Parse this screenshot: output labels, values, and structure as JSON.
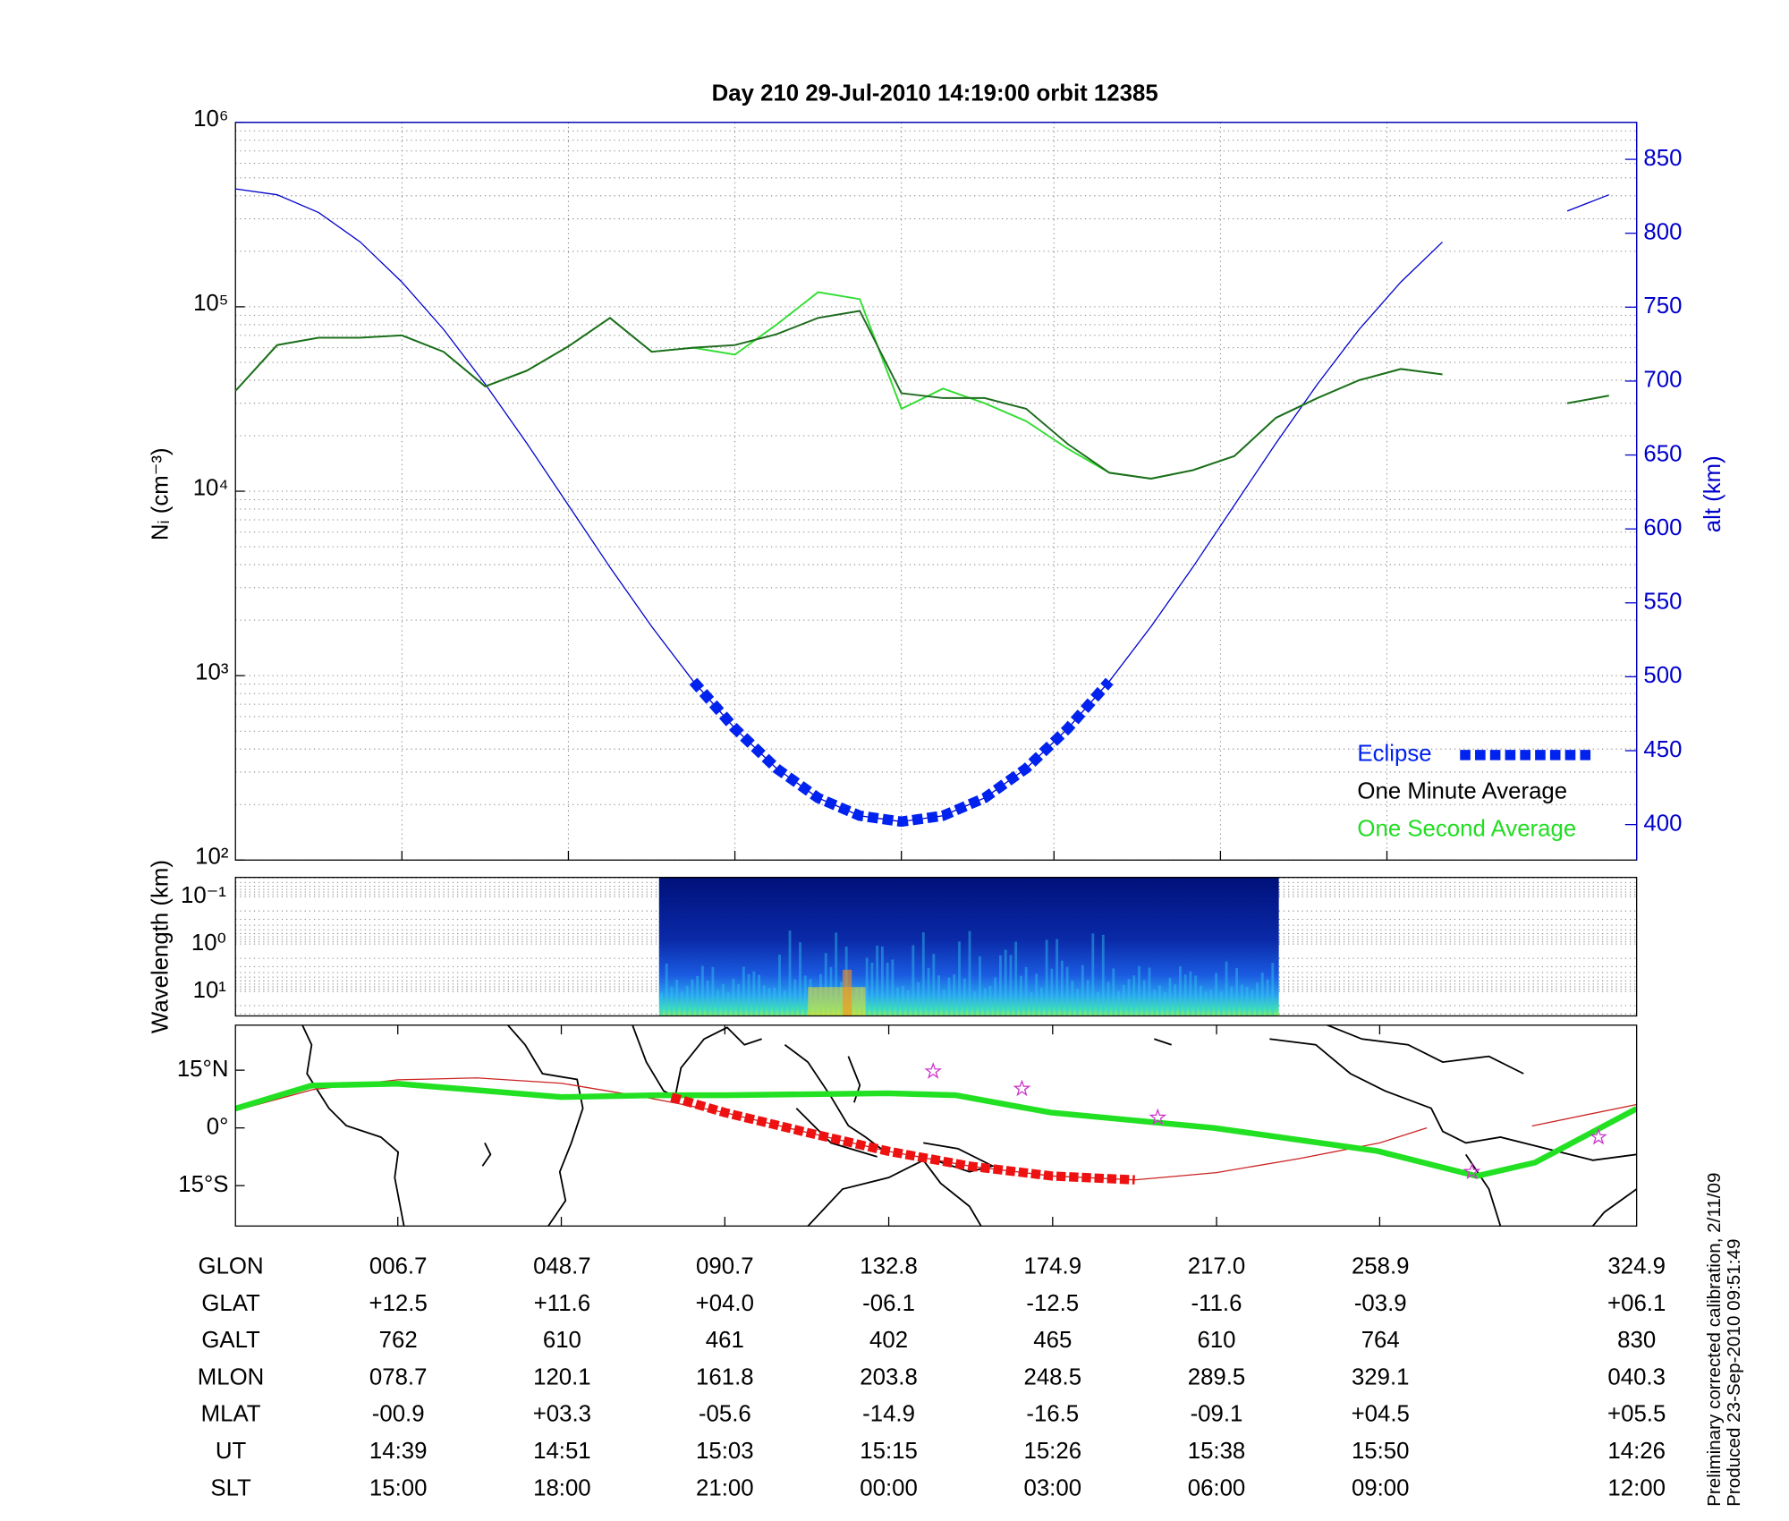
{
  "chart_data": [
    {
      "type": "line",
      "title": "Day 210  29-Jul-2010 14:19:00   orbit 12385",
      "ylabel": "Nᵢ (cm⁻³)",
      "y2label": "alt (km)",
      "log_y": true,
      "grid": true,
      "legend": "lower right",
      "xlim": [
        "14:27",
        "16:08"
      ],
      "xticks": [
        "14:39",
        "14:51",
        "15:03",
        "15:15",
        "15:26",
        "15:38",
        "15:50"
      ],
      "ylim": [
        100,
        1000000
      ],
      "yticks": [
        {
          "value": 100,
          "label": "10²"
        },
        {
          "value": 1000,
          "label": "10³"
        },
        {
          "value": 10000,
          "label": "10⁴"
        },
        {
          "value": 100000,
          "label": "10⁵"
        },
        {
          "value": 1000000,
          "label": "10⁶"
        }
      ],
      "y2lim": [
        376,
        875
      ],
      "y2ticks": [
        400,
        450,
        500,
        550,
        600,
        650,
        700,
        750,
        800,
        850
      ],
      "y2color": "#0000cc",
      "series": [
        {
          "name": "Eclipse",
          "axis": "y2",
          "color": "#0022ee",
          "style": "squares",
          "x": [
            "15:00",
            "15:03",
            "15:06",
            "15:09",
            "15:12",
            "15:15",
            "15:18",
            "15:21",
            "15:24",
            "15:27",
            "15:30"
          ],
          "values": [
            497,
            465,
            438,
            418,
            406,
            402,
            406,
            418,
            438,
            465,
            497
          ]
        },
        {
          "name": "One Minute Average",
          "color": "#1e6b1e",
          "text_color": "#000000",
          "style": "line",
          "x": [
            "14:27",
            "14:30",
            "14:33",
            "14:36",
            "14:39",
            "14:42",
            "14:45",
            "14:48",
            "14:51",
            "14:54",
            "14:57",
            "15:00",
            "15:03",
            "15:06",
            "15:09",
            "15:12",
            "15:15",
            "15:18",
            "15:21",
            "15:24",
            "15:27",
            "15:30",
            "15:33",
            "15:36",
            "15:39",
            "15:42",
            "15:45",
            "15:48",
            "15:51",
            "15:54",
            "15:57",
            "16:00",
            "16:03",
            "16:06"
          ],
          "values": [
            35000,
            62000,
            68000,
            68000,
            70000,
            57000,
            37000,
            45000,
            61000,
            87000,
            57000,
            60000,
            62000,
            71000,
            87000,
            95000,
            34000,
            32000,
            32000,
            28000,
            18000,
            12600,
            11700,
            13000,
            15500,
            25000,
            32000,
            40000,
            46000,
            43000,
            null,
            null,
            30000,
            33000
          ]
        },
        {
          "name": "One Second Average",
          "color": "#33dd33",
          "text_color": "#22dd22",
          "style": "line",
          "x": [
            "14:27",
            "14:30",
            "14:33",
            "14:36",
            "14:39",
            "14:42",
            "14:45",
            "14:48",
            "14:51",
            "14:54",
            "14:57",
            "15:00",
            "15:03",
            "15:06",
            "15:09",
            "15:12",
            "15:15",
            "15:18",
            "15:21",
            "15:24",
            "15:27",
            "15:30",
            "15:33",
            "15:36",
            "15:39",
            "15:42",
            "15:45",
            "15:48",
            "15:51",
            "15:54",
            "15:57",
            "16:00",
            "16:03",
            "16:06"
          ],
          "values": [
            35000,
            62000,
            68000,
            68000,
            70000,
            57000,
            37000,
            45000,
            61000,
            87000,
            57000,
            60000,
            55000,
            80000,
            120000,
            110000,
            28000,
            36000,
            30000,
            24000,
            17000,
            12600,
            11700,
            13000,
            15500,
            25000,
            32000,
            40000,
            46000,
            43000,
            null,
            null,
            30000,
            33000
          ]
        },
        {
          "axis": "y2",
          "color": "#0000cc",
          "style": "thin",
          "x": [
            "14:27",
            "14:30",
            "14:33",
            "14:36",
            "14:39",
            "14:42",
            "14:45",
            "14:48",
            "14:51",
            "14:54",
            "14:57",
            "15:00",
            "15:03",
            "15:06",
            "15:09",
            "15:12",
            "15:15",
            "15:18",
            "15:21",
            "15:24",
            "15:27",
            "15:30",
            "15:33",
            "15:36",
            "15:39",
            "15:42",
            "15:45",
            "15:48",
            "15:51",
            "15:54",
            "15:57",
            "16:00",
            "16:03",
            "16:06"
          ],
          "values": [
            830,
            826,
            814,
            794,
            767,
            735,
            698,
            658,
            616,
            574,
            534,
            497,
            465,
            438,
            418,
            406,
            402,
            406,
            418,
            438,
            465,
            497,
            534,
            574,
            616,
            658,
            698,
            735,
            767,
            794,
            null,
            null,
            815,
            826
          ]
        }
      ]
    },
    {
      "type": "spectrogram",
      "ylabel": "Wavelength (km)",
      "log_y": true,
      "grid": true,
      "ylim": [
        0.039,
        33
      ],
      "yticks": [
        {
          "value": 0.1,
          "label": "10⁻¹"
        },
        {
          "value": 1,
          "label": "10⁰"
        },
        {
          "value": 10,
          "label": "10¹"
        }
      ]
    },
    {
      "type": "map",
      "xlim": [
        -35,
        324.9
      ],
      "xticks": [
        6.7,
        48.7,
        90.7,
        132.8,
        174.9,
        217.0,
        258.9
      ],
      "ylim": [
        -25.5,
        26.7
      ],
      "yticks": [
        {
          "value": 15,
          "label": "15°N"
        },
        {
          "value": 0,
          "label": "0°"
        },
        {
          "value": -15,
          "label": "15°S"
        }
      ],
      "series": [
        {
          "color": "#cc2222",
          "style": "thin",
          "x": [
            -35,
            -15,
            6.7,
            27,
            48.7,
            70,
            90.7,
            111,
            132.8,
            154,
            174.9,
            196,
            217.0,
            238,
            258.9,
            271,
            null,
            298,
            324.9
          ],
          "values": [
            4.5,
            10,
            12.5,
            13,
            11.6,
            8,
            4.0,
            -1,
            -6.1,
            -10,
            -12.5,
            -13.5,
            -11.6,
            -8,
            -3.9,
            0,
            null,
            0.5,
            6.1
          ]
        },
        {
          "color": "#22e022",
          "style": "bold",
          "x": [
            -35,
            -15.5,
            6.7,
            48.7,
            73,
            90.4,
            132.4,
            150,
            174.4,
            216.3,
            258.3,
            283.8,
            298.8,
            324.9
          ],
          "values": [
            5,
            11,
            11.5,
            8,
            8.5,
            8.5,
            9,
            8.5,
            4,
            0,
            -6,
            -12.5,
            -9,
            5
          ]
        },
        {
          "color": "#ee1111",
          "style": "squares",
          "x": [
            77,
            90.7,
            111,
            132.8,
            154,
            174.9,
            196
          ],
          "values": [
            8,
            4.0,
            -1,
            -6.1,
            -10,
            -12.5,
            -13.5
          ]
        },
        {
          "color": "#cc33cc",
          "style": "stars",
          "x": [
            144.2,
            167,
            201.9,
            282.6,
            315.1
          ],
          "values": [
            14.7,
            10.2,
            2.7,
            -11.4,
            -2.4
          ]
        }
      ]
    }
  ],
  "table": {
    "rows": [
      {
        "label": "GLON",
        "values": [
          "006.7",
          "048.7",
          "090.7",
          "132.8",
          "174.9",
          "217.0",
          "258.9",
          "324.9"
        ]
      },
      {
        "label": "GLAT",
        "values": [
          "+12.5",
          "+11.6",
          "+04.0",
          "-06.1",
          "-12.5",
          "-11.6",
          "-03.9",
          "+06.1"
        ]
      },
      {
        "label": "GALT",
        "values": [
          "762",
          "610",
          "461",
          "402",
          "465",
          "610",
          "764",
          "830"
        ]
      },
      {
        "label": "MLON",
        "values": [
          "078.7",
          "120.1",
          "161.8",
          "203.8",
          "248.5",
          "289.5",
          "329.1",
          "040.3"
        ]
      },
      {
        "label": "MLAT",
        "values": [
          "-00.9",
          "+03.3",
          "-05.6",
          "-14.9",
          "-16.5",
          "-09.1",
          "+04.5",
          "+05.5"
        ]
      },
      {
        "label": "UT",
        "values": [
          "14:39",
          "14:51",
          "15:03",
          "15:15",
          "15:26",
          "15:38",
          "15:50",
          "14:26"
        ]
      },
      {
        "label": "SLT",
        "values": [
          "15:00",
          "18:00",
          "21:00",
          "00:00",
          "03:00",
          "06:00",
          "09:00",
          "12:00"
        ]
      }
    ]
  },
  "notes": [
    "Preliminary corrected calibration, 2/11/09",
    "Produced 23-Sep-2010 09:51:49"
  ]
}
